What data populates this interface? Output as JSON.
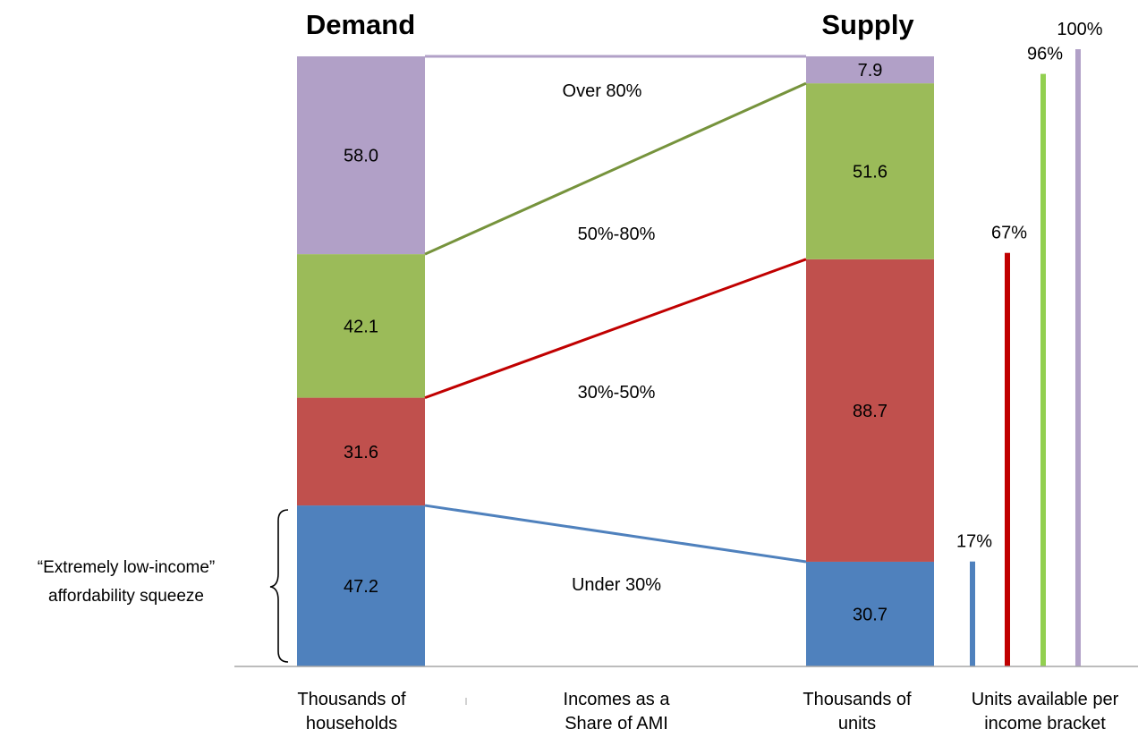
{
  "chart_data": {
    "type": "bar",
    "titles": {
      "demand": "Demand",
      "supply": "Supply"
    },
    "bands": [
      "Under 30%",
      "30%-50%",
      "50%-80%",
      "Over 80%"
    ],
    "band_colors": [
      "#4F81BD",
      "#C0504D",
      "#9BBB59",
      "#B1A0C7"
    ],
    "connector_colors": [
      "#4F81BD",
      "#C00000",
      "#76933C",
      "#B1A0C7"
    ],
    "demand": [
      47.2,
      31.6,
      42.1,
      58.0
    ],
    "demand_labels": [
      "47.2",
      "31.6",
      "42.1",
      "58.0"
    ],
    "supply": [
      30.7,
      88.7,
      51.6,
      7.9
    ],
    "supply_labels": [
      "30.7",
      "88.7",
      "51.6",
      "7.9"
    ],
    "units_available_pct": [
      17,
      67,
      96,
      100
    ],
    "units_available_labels": [
      "17%",
      "67%",
      "96%",
      "100%"
    ],
    "bar_colors_pct": [
      "#4F81BD",
      "#C00000",
      "#92D050",
      "#B1A0C7"
    ],
    "category_labels": {
      "demand": [
        "Thousands of",
        "households"
      ],
      "bands": [
        "Incomes as a",
        "Share of AMI"
      ],
      "supply": [
        "Thousands of",
        "units"
      ],
      "pct": [
        "Units available per",
        "income bracket"
      ]
    },
    "annotation": [
      "“Extremely low-income”",
      "affordability squeeze"
    ]
  }
}
